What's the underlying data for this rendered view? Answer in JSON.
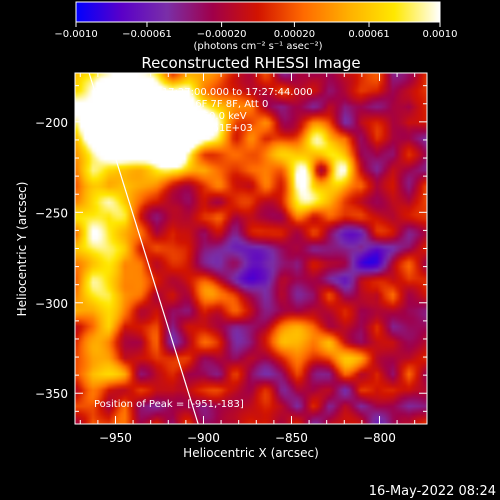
{
  "chart_data": {
    "type": "heatmap",
    "title": "Reconstructed RHESSI Image",
    "xlabel": "Heliocentric X (arcsec)",
    "ylabel": "Heliocentric Y (arcsec)",
    "xlim": [
      -973,
      -773
    ],
    "ylim": [
      -367,
      -173
    ],
    "x_ticks": [
      -950,
      -900,
      -850,
      -800
    ],
    "y_ticks": [
      -200,
      -250,
      -300,
      -350
    ],
    "x_tick_labels": [
      "−950",
      "−900",
      "−850",
      "−800"
    ],
    "y_tick_labels": [
      "−200",
      "−250",
      "−300",
      "−350"
    ],
    "colorbar": {
      "min": -0.001,
      "max": 0.001,
      "ticks": [
        -0.001,
        -0.00061,
        -0.0002,
        0.0002,
        0.00061,
        0.001
      ],
      "tick_labels": [
        "−0.0010",
        "−0.00061",
        "−0.00020",
        "0.00020",
        "0.00061",
        "0.0010"
      ],
      "unit_label": "(photons cm⁻² s⁻¹ asec⁻²)",
      "colors": [
        "#0000ff",
        "#5a00c8",
        "#7a2fa8",
        "#a0004a",
        "#d21400",
        "#ff6a00",
        "#ffb000",
        "#ffe800",
        "#ffffff"
      ]
    },
    "info_lines": [
      "16-Nov-2011 17:27:00.000 to 17:27:44.000",
      "Detectors: 3F 4F 5F 6F 7F 8F, Att 0",
      "Energy Range: 25.0 - 50.0 keV",
      "Clean    Total Counts: 1.51E+03"
    ],
    "peak_label": "Position of Peak = [-951,-183]",
    "peak": [
      -951,
      -183
    ],
    "limb_line": [
      [
        -965,
        -173
      ],
      [
        -903,
        -367
      ]
    ],
    "blobs": [
      {
        "x": -955,
        "y": -190,
        "sx": 20,
        "sy": 18,
        "v": 0.0013
      },
      {
        "x": -930,
        "y": -195,
        "sx": 22,
        "sy": 15,
        "v": 0.0011
      },
      {
        "x": -905,
        "y": -200,
        "sx": 18,
        "sy": 14,
        "v": 0.001
      },
      {
        "x": -925,
        "y": -215,
        "sx": 12,
        "sy": 10,
        "v": 0.0008
      },
      {
        "x": -960,
        "y": -240,
        "sx": 15,
        "sy": 25,
        "v": 0.0008
      },
      {
        "x": -955,
        "y": -285,
        "sx": 15,
        "sy": 25,
        "v": 0.0006
      },
      {
        "x": -960,
        "y": -335,
        "sx": 12,
        "sy": 20,
        "v": 0.0005
      },
      {
        "x": -843,
        "y": -228,
        "sx": 7,
        "sy": 7,
        "v": 0.0012
      },
      {
        "x": -823,
        "y": -228,
        "sx": 7,
        "sy": 8,
        "v": 0.0011
      },
      {
        "x": -833,
        "y": -210,
        "sx": 8,
        "sy": 6,
        "v": 0.0009
      },
      {
        "x": -838,
        "y": -243,
        "sx": 10,
        "sy": 6,
        "v": 0.0009
      },
      {
        "x": -858,
        "y": -215,
        "sx": 8,
        "sy": 8,
        "v": 0.0006
      },
      {
        "x": -833,
        "y": -227,
        "sx": 4,
        "sy": 4,
        "v": -0.0008
      },
      {
        "x": -893,
        "y": -295,
        "sx": 8,
        "sy": 6,
        "v": 0.0005
      },
      {
        "x": -848,
        "y": -320,
        "sx": 12,
        "sy": 8,
        "v": 0.0006
      },
      {
        "x": -820,
        "y": -330,
        "sx": 10,
        "sy": 7,
        "v": 0.0005
      },
      {
        "x": -918,
        "y": -225,
        "sx": 7,
        "sy": 6,
        "v": 0.0006
      },
      {
        "x": -880,
        "y": -240,
        "sx": 10,
        "sy": 10,
        "v": 0.0004
      },
      {
        "x": -810,
        "y": -275,
        "sx": 10,
        "sy": 10,
        "v": -0.0006
      },
      {
        "x": -870,
        "y": -280,
        "sx": 12,
        "sy": 10,
        "v": -0.0005
      },
      {
        "x": -800,
        "y": -300,
        "sx": 8,
        "sy": 8,
        "v": 0.0003
      }
    ]
  },
  "footer": {
    "timestamp": "16-May-2022 08:24"
  }
}
